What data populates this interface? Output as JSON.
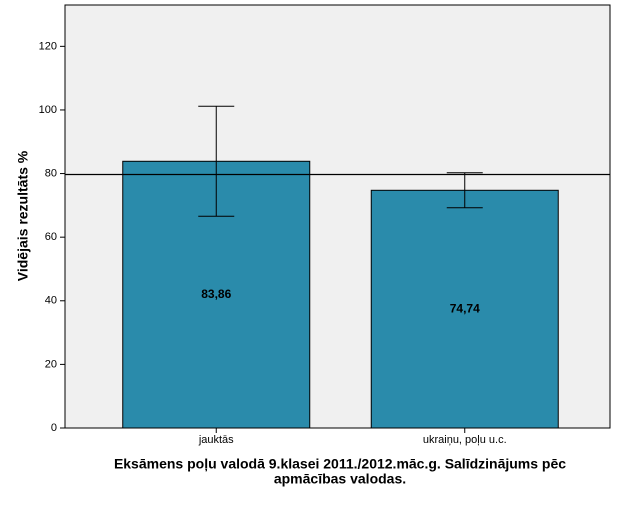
{
  "chart_data": {
    "type": "bar",
    "ylabel": "Vidējais rezultāts %",
    "xlabel": [
      "Eksāmens poļu valodā 9.klasei 2011./2012.māc.g. Salīdzinājums pēc",
      "apmācības valodas."
    ],
    "categories": [
      "jauktās",
      "ukraiņu, poļu u.c."
    ],
    "values": [
      83.86,
      74.74
    ],
    "value_labels": [
      "83,86",
      "74,74"
    ],
    "errors": [
      17.3,
      5.5
    ],
    "reference_line": 79.7,
    "color": "#2a8bab",
    "ylim": [
      0,
      133
    ],
    "yticks": [
      0,
      20,
      40,
      60,
      80,
      100,
      120
    ]
  }
}
